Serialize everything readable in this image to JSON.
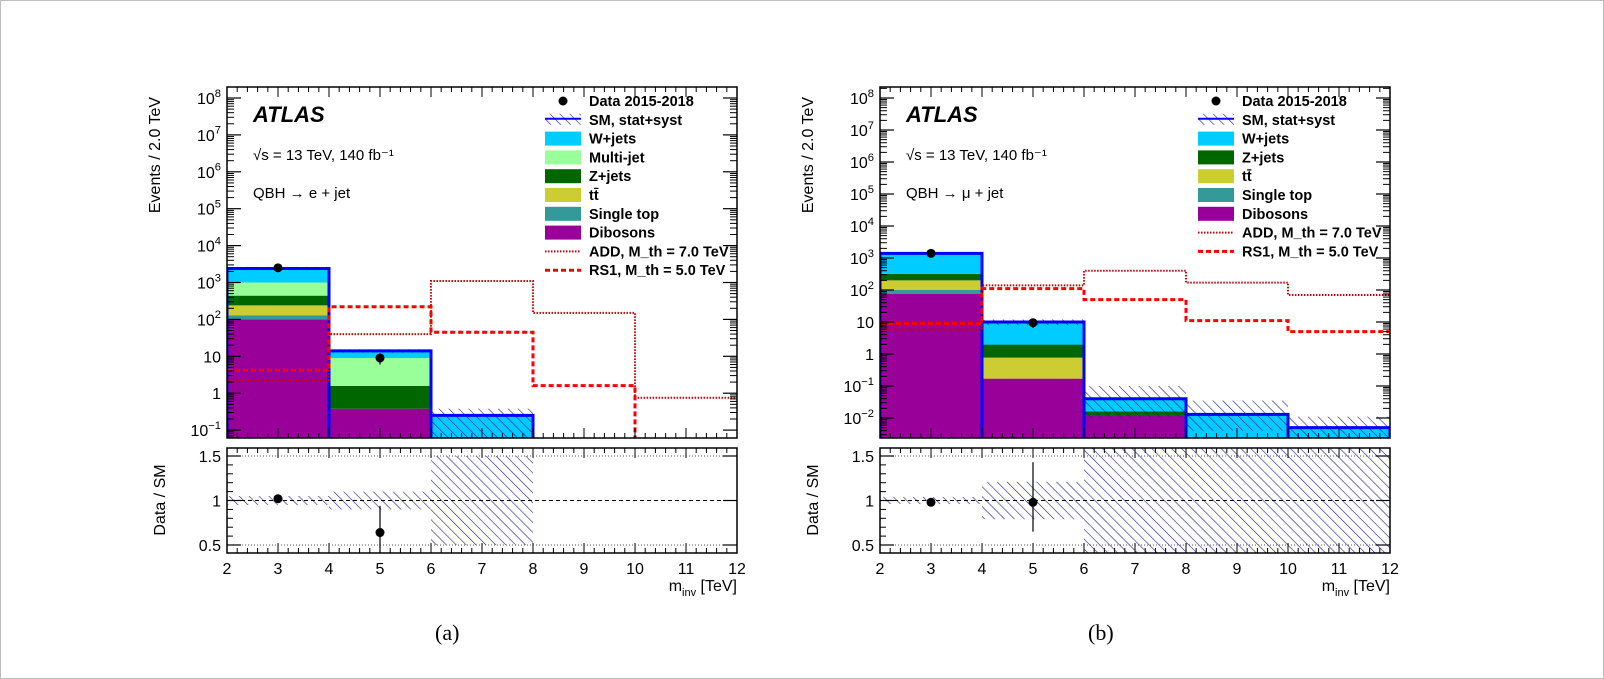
{
  "figure": {
    "captions": [
      "(a)",
      "(b)"
    ]
  },
  "chart_data": [
    {
      "type": "bar",
      "subtype": "stacked-histogram-log-with-ratio",
      "panel": "a",
      "title": "ATLAS",
      "annotations": [
        "√s = 13 TeV, 140 fb⁻¹",
        "QBH → e + jet"
      ],
      "xlabel": "m_inv [TeV]",
      "ylabel": "Events / 2.0 TeV",
      "ratio_ylabel": "Data / SM",
      "xlim": [
        2,
        12
      ],
      "ylim": [
        0.05,
        200000000
      ],
      "yscale": "log",
      "ytick_labels": [
        "10^8",
        "10^7",
        "10^6",
        "10^5",
        "10^4",
        "10^3",
        "10^2",
        "10",
        "1",
        "10^-1"
      ],
      "xtick_labels": [
        "2",
        "3",
        "4",
        "5",
        "6",
        "7",
        "8",
        "9",
        "10",
        "11",
        "12"
      ],
      "ratio_ylim": [
        0.4,
        1.6
      ],
      "ratio_ytick_labels": [
        "1.5",
        "1",
        "0.5"
      ],
      "bin_edges": [
        2,
        4,
        6,
        8,
        10,
        12
      ],
      "legend_position": "top-right",
      "legend": [
        "Data 2015-2018",
        "SM, stat+syst",
        "W+jets",
        "Multi-jet",
        "Z+jets",
        "tt̄",
        "Single top",
        "Dibosons",
        "ADD, M_th = 7.0 TeV",
        "RS1, M_th = 5.0 TeV"
      ],
      "stack_order": [
        "Dibosons",
        "Single top",
        "tt̄",
        "Z+jets",
        "Multi-jet",
        "W+jets"
      ],
      "series": [
        {
          "name": "Dibosons",
          "color": "#990099",
          "values": [
            100,
            0.38,
            0.0,
            0.0,
            0.0
          ]
        },
        {
          "name": "Single top",
          "color": "#339999",
          "values": [
            30,
            0.0,
            0.0,
            0.0,
            0.0
          ]
        },
        {
          "name": "tt̄",
          "color": "#cccc33",
          "values": [
            110,
            0.0,
            0.0,
            0.0,
            0.0
          ]
        },
        {
          "name": "Z+jets",
          "color": "#006600",
          "values": [
            200,
            1.2,
            0.0,
            0.0,
            0.0
          ]
        },
        {
          "name": "Multi-jet",
          "color": "#99ff99",
          "values": [
            560,
            7.4,
            0.0,
            0.0,
            0.0
          ]
        },
        {
          "name": "W+jets",
          "color": "#00ccff",
          "values": [
            1400,
            5.0,
            0.25,
            0.0,
            0.0
          ]
        }
      ],
      "sm_total": [
        2400,
        14,
        0.25,
        0,
        0
      ],
      "sm_uncertainty_band": [
        [
          2200,
          2650
        ],
        [
          12.5,
          15.5
        ],
        [
          0.05,
          0.38
        ],
        null,
        null
      ],
      "data": {
        "x": [
          3,
          5
        ],
        "y": [
          2500,
          9
        ],
        "yerr": [
          50,
          3
        ]
      },
      "signals": [
        {
          "name": "ADD, M_th = 7.0 TeV",
          "style": "dotted",
          "color": "#cc0000",
          "values": [
            2.2,
            40,
            1100,
            150,
            0.75
          ]
        },
        {
          "name": "RS1, M_th = 5.0 TeV",
          "style": "dashed",
          "color": "#ff0000",
          "values": [
            4.2,
            220,
            45,
            1.6,
            0.05
          ]
        }
      ],
      "ratio": {
        "data": {
          "x": [
            3,
            5
          ],
          "y": [
            1.02,
            0.64
          ],
          "yerr_low": [
            0.02,
            0.3
          ],
          "yerr_high": [
            0.02,
            0.3
          ]
        },
        "band": [
          [
            0.95,
            1.05
          ],
          [
            0.9,
            1.1
          ],
          [
            0.5,
            1.5
          ],
          null,
          null
        ]
      }
    },
    {
      "type": "bar",
      "subtype": "stacked-histogram-log-with-ratio",
      "panel": "b",
      "title": "ATLAS",
      "annotations": [
        "√s = 13 TeV, 140 fb⁻¹",
        "QBH → μ + jet"
      ],
      "xlabel": "m_inv [TeV]",
      "ylabel": "Events / 2.0 TeV",
      "ratio_ylabel": "Data / SM",
      "xlim": [
        2,
        12
      ],
      "ylim": [
        0.003,
        200000000
      ],
      "yscale": "log",
      "ytick_labels": [
        "10^8",
        "10^7",
        "10^6",
        "10^5",
        "10^4",
        "10^3",
        "10^2",
        "10",
        "1",
        "10^-1",
        "10^-2"
      ],
      "xtick_labels": [
        "2",
        "3",
        "4",
        "5",
        "6",
        "7",
        "8",
        "9",
        "10",
        "11",
        "12"
      ],
      "ratio_ylim": [
        0.4,
        1.6
      ],
      "ratio_ytick_labels": [
        "1.5",
        "1",
        "0.5"
      ],
      "bin_edges": [
        2,
        4,
        6,
        8,
        10,
        12
      ],
      "legend_position": "top-right",
      "legend": [
        "Data 2015-2018",
        "SM, stat+syst",
        "W+jets",
        "Z+jets",
        "tt̄",
        "Single top",
        "Dibosons",
        "ADD, M_th = 7.0 TeV",
        "RS1, M_th = 5.0 TeV"
      ],
      "stack_order": [
        "Dibosons",
        "Single top",
        "tt̄",
        "Z+jets",
        "W+jets"
      ],
      "series": [
        {
          "name": "Dibosons",
          "color": "#990099",
          "values": [
            75,
            0.17,
            0.012,
            0.0,
            0.0
          ]
        },
        {
          "name": "Single top",
          "color": "#339999",
          "values": [
            25,
            0.0,
            0.0,
            0.0,
            0.0
          ]
        },
        {
          "name": "tt̄",
          "color": "#cccc33",
          "values": [
            100,
            0.6,
            0.0,
            0.0,
            0.0
          ]
        },
        {
          "name": "Z+jets",
          "color": "#006600",
          "values": [
            120,
            1.2,
            0.004,
            0.0,
            0.0
          ]
        },
        {
          "name": "W+jets",
          "color": "#00ccff",
          "values": [
            1080,
            8.0,
            0.024,
            0.013,
            0.005
          ]
        }
      ],
      "sm_total": [
        1400,
        10,
        0.04,
        0.013,
        0.005
      ],
      "sm_uncertainty_band": [
        [
          1330,
          1470
        ],
        [
          8,
          12
        ],
        [
          0.01,
          0.1
        ],
        [
          0.004,
          0.035
        ],
        [
          0.002,
          0.011
        ]
      ],
      "data": {
        "x": [
          3,
          5
        ],
        "y": [
          1400,
          9.5
        ],
        "yerr": [
          40,
          3
        ]
      },
      "signals": [
        {
          "name": "ADD, M_th = 7.0 TeV",
          "style": "dotted",
          "color": "#cc0000",
          "values": [
            5.8,
            140,
            400,
            170,
            70
          ]
        },
        {
          "name": "RS1, M_th = 5.0 TeV",
          "style": "dashed",
          "color": "#ff0000",
          "values": [
            9,
            110,
            50,
            11,
            5
          ]
        }
      ],
      "ratio": {
        "data": {
          "x": [
            3,
            5
          ],
          "y": [
            0.98,
            0.98
          ],
          "yerr_low": [
            0.02,
            0.33
          ],
          "yerr_high": [
            0.02,
            0.45
          ]
        },
        "band": [
          [
            0.96,
            1.04
          ],
          [
            0.79,
            1.21
          ],
          [
            0.4,
            1.6
          ],
          [
            0.4,
            1.6
          ],
          [
            0.4,
            1.6
          ]
        ]
      }
    }
  ]
}
